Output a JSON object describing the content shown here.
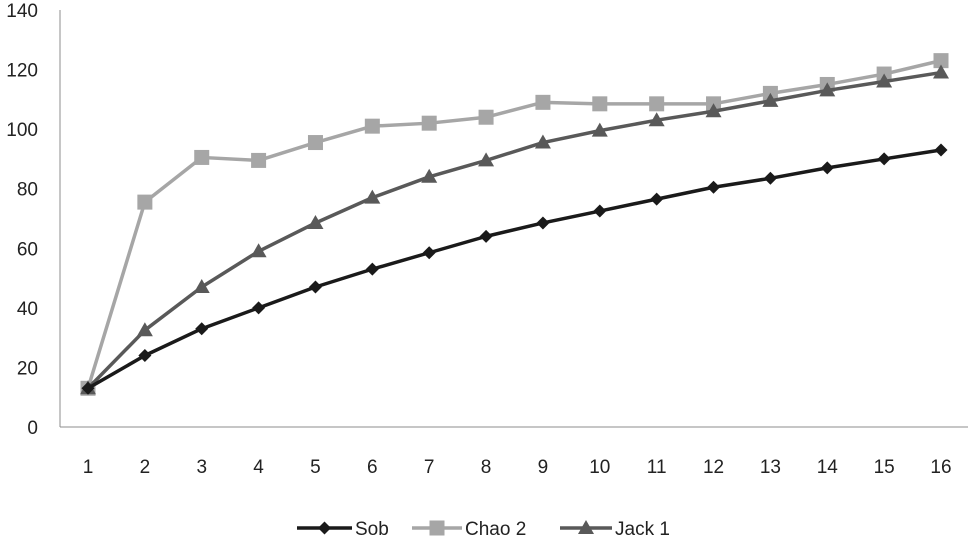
{
  "chart_data": {
    "type": "line",
    "title": "",
    "xlabel": "",
    "ylabel": "",
    "x": [
      1,
      2,
      3,
      4,
      5,
      6,
      7,
      8,
      9,
      10,
      11,
      12,
      13,
      14,
      15,
      16
    ],
    "x_tick_labels": [
      "1",
      "2",
      "3",
      "4",
      "5",
      "6",
      "7",
      "8",
      "9",
      "10",
      "11",
      "12",
      "13",
      "14",
      "15",
      "16"
    ],
    "ylim": [
      0,
      140
    ],
    "y_ticks": [
      0,
      20,
      40,
      60,
      80,
      100,
      120,
      140
    ],
    "y_tick_labels": [
      "0",
      "20",
      "40",
      "60",
      "80",
      "100",
      "120",
      "140"
    ],
    "grid": false,
    "legend_position": "bottom",
    "series": [
      {
        "name": "Sob",
        "color": "#1a1a1a",
        "marker": "diamond",
        "values": [
          13,
          24,
          33,
          40,
          47,
          53,
          58.5,
          64,
          68.5,
          72.5,
          76.5,
          80.5,
          83.5,
          87,
          90,
          93
        ]
      },
      {
        "name": "Chao 2",
        "color": "#a6a6a6",
        "marker": "square",
        "values": [
          13,
          75.5,
          90.5,
          89.5,
          95.5,
          101,
          102,
          104,
          109,
          108.5,
          108.5,
          108.5,
          112,
          115,
          118.5,
          123
        ]
      },
      {
        "name": "Jack 1",
        "color": "#595959",
        "marker": "triangle",
        "values": [
          13,
          32.5,
          47,
          59,
          68.5,
          77,
          84,
          89.5,
          95.5,
          99.5,
          103,
          106,
          109.5,
          113,
          116,
          119
        ]
      }
    ]
  }
}
